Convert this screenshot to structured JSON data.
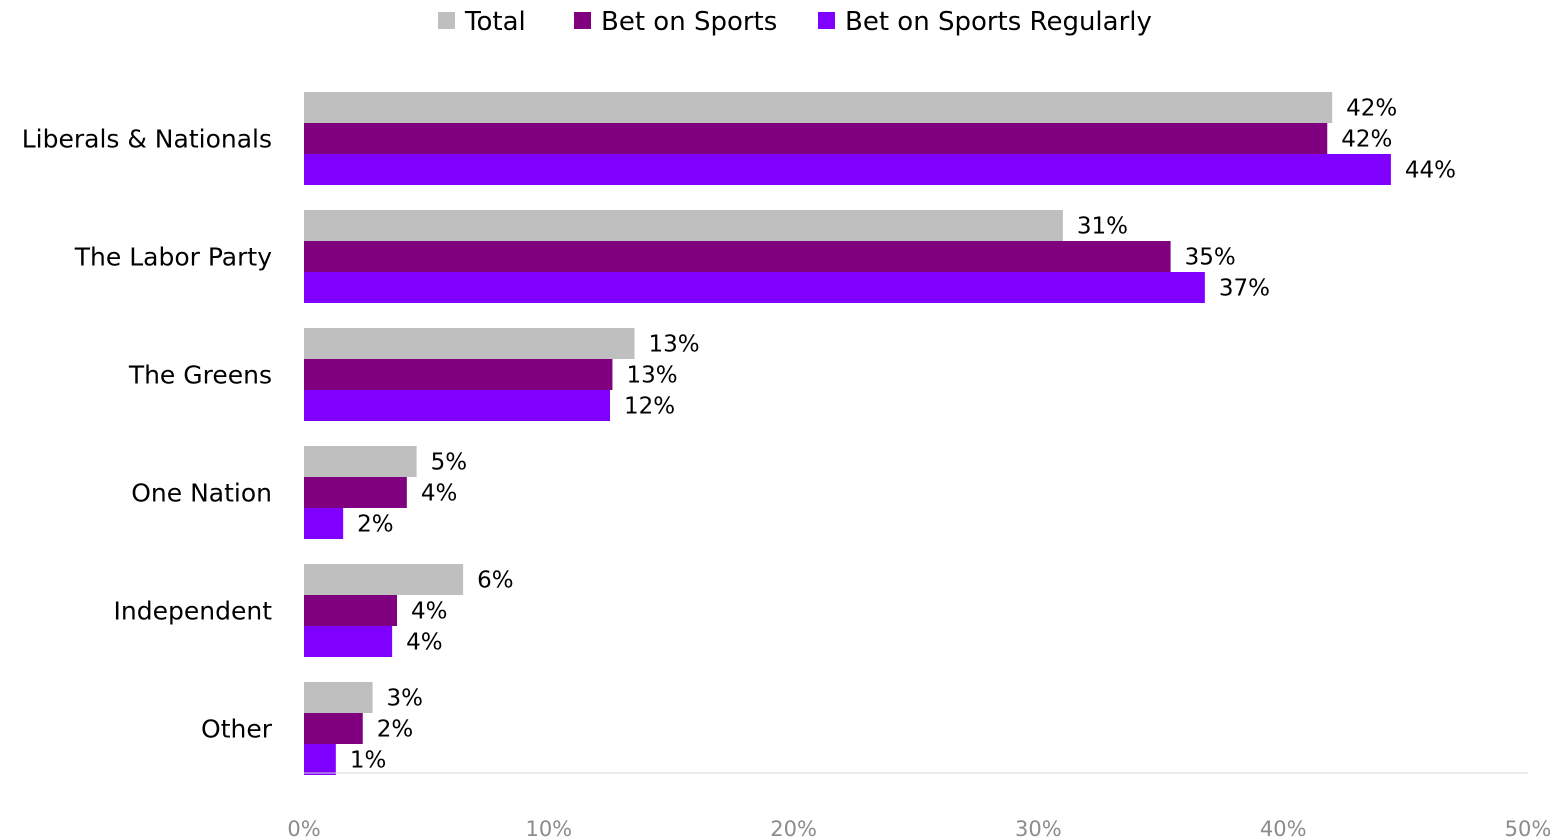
{
  "chart_data": {
    "type": "bar",
    "orientation": "horizontal",
    "title": "",
    "xlabel": "",
    "ylabel": "",
    "categories": [
      "Liberals & Nationals",
      "The Labor Party",
      "The Greens",
      "One Nation",
      "Independent",
      "Other"
    ],
    "series": [
      {
        "name": "Total",
        "color": "#bfbfbf",
        "values": [
          42,
          31,
          13.5,
          4.6,
          6.5,
          2.8
        ],
        "labels": [
          "42%",
          "31%",
          "13%",
          "5%",
          "6%",
          "3%"
        ]
      },
      {
        "name": "Bet on Sports",
        "color": "#800080",
        "values": [
          41.8,
          35.4,
          12.6,
          4.2,
          3.8,
          2.4
        ],
        "labels": [
          "42%",
          "35%",
          "13%",
          "4%",
          "4%",
          "2%"
        ]
      },
      {
        "name": "Bet on Sports Regularly",
        "color": "#7f00ff",
        "values": [
          44.4,
          36.8,
          12.5,
          1.6,
          3.6,
          1.3
        ],
        "labels": [
          "44%",
          "37%",
          "12%",
          "2%",
          "4%",
          "1%"
        ]
      }
    ],
    "xlim": [
      0,
      50
    ],
    "ticks": [
      0,
      10,
      20,
      30,
      40,
      50
    ],
    "tick_labels": [
      "0%",
      "10%",
      "20%",
      "30%",
      "40%",
      "50%"
    ],
    "legend_position": "top-center",
    "grid": false,
    "axis_line_color": "#d9d9d9"
  }
}
